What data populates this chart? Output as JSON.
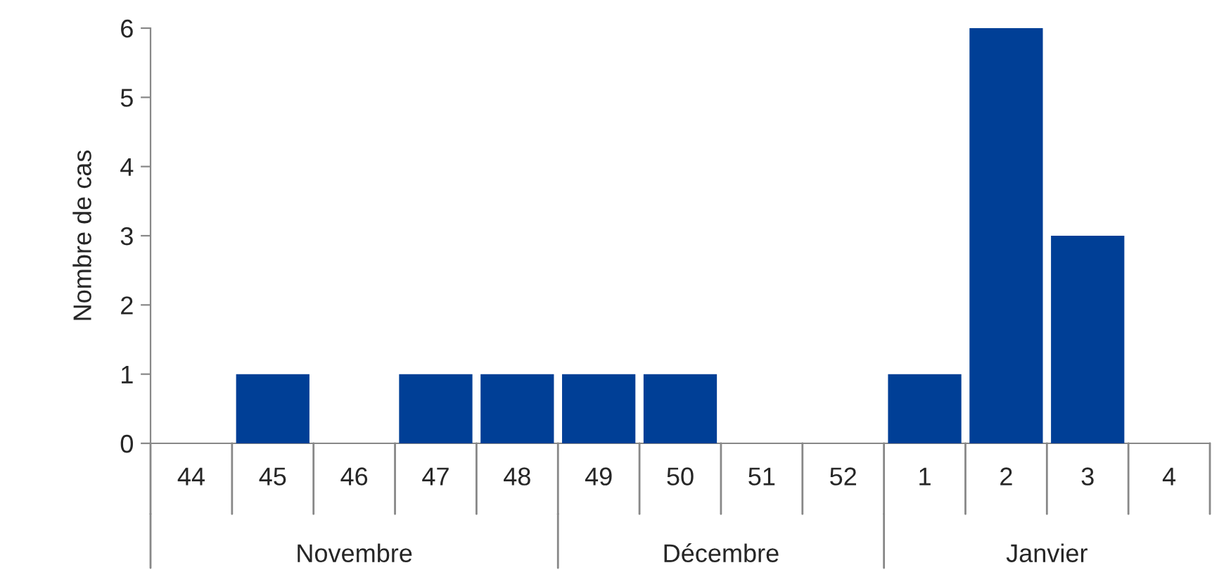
{
  "chart_data": {
    "type": "bar",
    "ylabel": "Nombre de cas",
    "categories": [
      "44",
      "45",
      "46",
      "47",
      "48",
      "49",
      "50",
      "51",
      "52",
      "1",
      "2",
      "3",
      "4"
    ],
    "values": [
      0,
      1,
      0,
      1,
      1,
      1,
      1,
      0,
      0,
      1,
      6,
      3,
      0
    ],
    "color": "#003f96",
    "ylim": [
      0,
      6
    ],
    "yticks": [
      0,
      1,
      2,
      3,
      4,
      5,
      6
    ],
    "grid": false,
    "annotations": [
      "Novembre",
      "Décembre",
      "Janvier"
    ]
  }
}
